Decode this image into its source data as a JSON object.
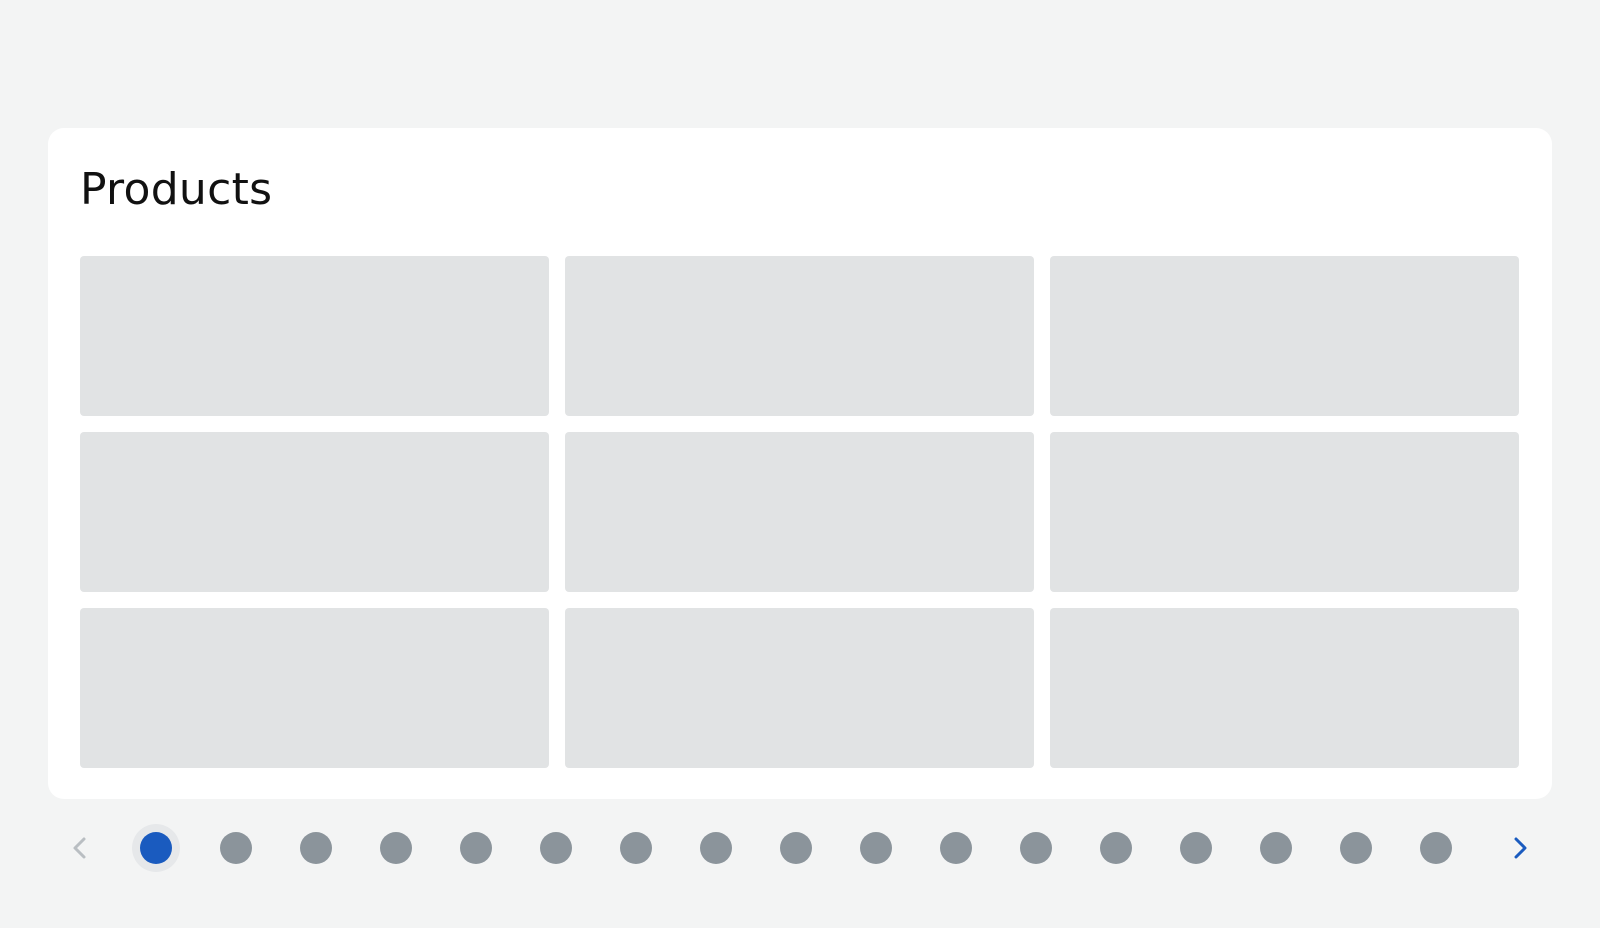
{
  "section": {
    "title": "Products"
  },
  "grid": {
    "rows": 3,
    "columns": 3,
    "tiles": 9
  },
  "pagination": {
    "total_pages": 17,
    "current_page": 1,
    "prev_icon": "chevron-left-icon",
    "next_icon": "chevron-right-icon",
    "prev_disabled": true
  },
  "colors": {
    "page_background": "#f3f4f4",
    "card_background": "#ffffff",
    "placeholder_tile": "#e1e3e4",
    "dot_inactive": "#8b949b",
    "dot_active": "#1a5bbf",
    "dot_active_halo": "#e6e8ea",
    "chevron_disabled": "#b9bec2",
    "chevron_enabled": "#1a5bbf"
  }
}
